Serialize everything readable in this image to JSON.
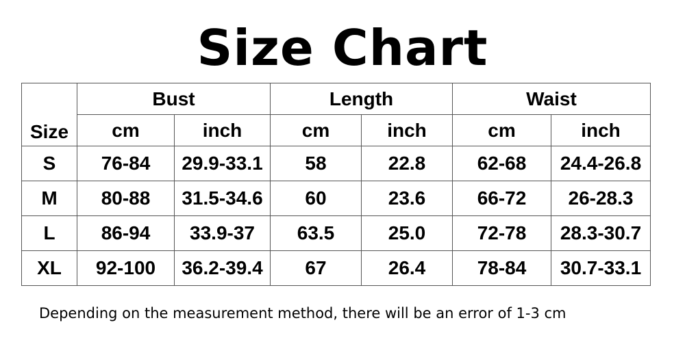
{
  "title": "Size Chart",
  "table": {
    "size_header": "Size",
    "groups": [
      "Bust",
      "Length",
      "Waist"
    ],
    "units": [
      "cm",
      "inch",
      "cm",
      "inch",
      "cm",
      "inch"
    ],
    "rows": [
      {
        "size": "S",
        "values": [
          "76-84",
          "29.9-33.1",
          "58",
          "22.8",
          "62-68",
          "24.4-26.8"
        ]
      },
      {
        "size": "M",
        "values": [
          "80-88",
          "31.5-34.6",
          "60",
          "23.6",
          "66-72",
          "26-28.3"
        ]
      },
      {
        "size": "L",
        "values": [
          "86-94",
          "33.9-37",
          "63.5",
          "25.0",
          "72-78",
          "28.3-30.7"
        ]
      },
      {
        "size": "XL",
        "values": [
          "92-100",
          "36.2-39.4",
          "67",
          "26.4",
          "78-84",
          "30.7-33.1"
        ]
      }
    ]
  },
  "footnote": "Depending on the measurement method, there will be an error of 1-3 cm"
}
